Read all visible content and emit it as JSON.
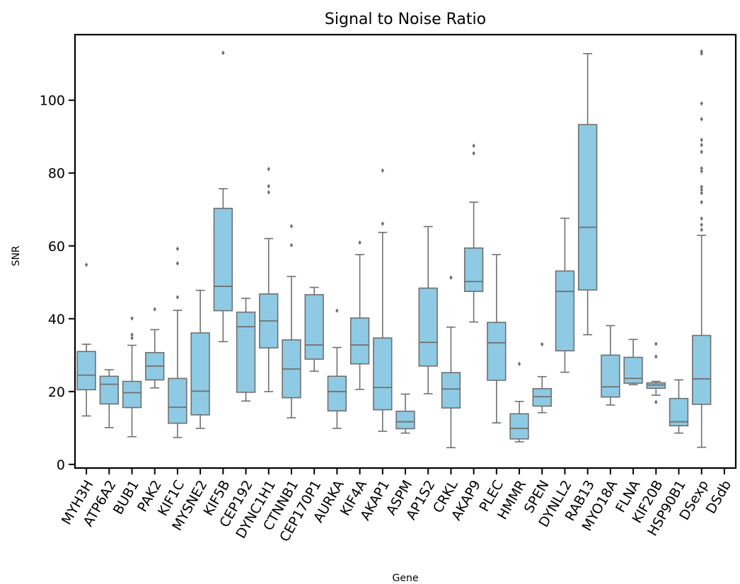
{
  "chart_data": {
    "type": "box",
    "title": "Signal to Noise Ratio",
    "xlabel": "Gene",
    "ylabel": "SNR",
    "ylim": [
      -1,
      118
    ],
    "yticks": [
      0,
      20,
      40,
      60,
      80,
      100
    ],
    "box_color": "#8ecae3",
    "line_color": "#707070",
    "grid": false,
    "categories": [
      "MYH3H",
      "ATP6A2",
      "BUB1",
      "PAK2",
      "KIF1C",
      "MYSNE2",
      "KIF5B",
      "CEP192",
      "DYNC1H1",
      "CTNNB1",
      "CEP170P1",
      "AURKA",
      "KIF4A",
      "AKAP1",
      "ASPM",
      "AP1S2",
      "CRKL",
      "AKAP9",
      "PLEC",
      "HMMR",
      "SPEN",
      "DYNLL2",
      "RAB13",
      "MYO18A",
      "FLNA",
      "KIF20B",
      "HSP90B1",
      "DSexp",
      "DSdb"
    ],
    "boxes": [
      {
        "whislo": 13.3,
        "q1": 20.5,
        "med": 24.5,
        "q3": 31.0,
        "whishi": 33.0,
        "fliers": [
          54.8
        ]
      },
      {
        "whislo": 10.1,
        "q1": 16.6,
        "med": 22.0,
        "q3": 24.2,
        "whishi": 26.0,
        "fliers": []
      },
      {
        "whislo": 7.6,
        "q1": 15.6,
        "med": 19.7,
        "q3": 22.8,
        "whishi": 32.7,
        "fliers": [
          34.7,
          35.6,
          40.1
        ]
      },
      {
        "whislo": 21.0,
        "q1": 23.2,
        "med": 27.0,
        "q3": 30.7,
        "whishi": 37.0,
        "fliers": [
          42.6
        ]
      },
      {
        "whislo": 7.4,
        "q1": 11.3,
        "med": 15.7,
        "q3": 23.6,
        "whishi": 42.3,
        "fliers": [
          45.9,
          55.2,
          59.2
        ]
      },
      {
        "whislo": 9.9,
        "q1": 13.6,
        "med": 20.1,
        "q3": 36.1,
        "whishi": 47.8,
        "fliers": []
      },
      {
        "whislo": 33.7,
        "q1": 42.2,
        "med": 48.9,
        "q3": 70.3,
        "whishi": 75.7,
        "fliers": [
          113.0
        ]
      },
      {
        "whislo": 17.4,
        "q1": 19.8,
        "med": 37.8,
        "q3": 41.8,
        "whishi": 45.6,
        "fliers": []
      },
      {
        "whislo": 20.0,
        "q1": 32.0,
        "med": 39.4,
        "q3": 46.8,
        "whishi": 62.0,
        "fliers": [
          74.7,
          76.4,
          81.1
        ]
      },
      {
        "whislo": 12.8,
        "q1": 18.3,
        "med": 26.2,
        "q3": 34.2,
        "whishi": 51.6,
        "fliers": [
          60.2,
          65.4
        ]
      },
      {
        "whislo": 25.6,
        "q1": 28.9,
        "med": 32.8,
        "q3": 46.6,
        "whishi": 48.6,
        "fliers": []
      },
      {
        "whislo": 9.9,
        "q1": 14.7,
        "med": 20.0,
        "q3": 24.2,
        "whishi": 32.1,
        "fliers": [
          42.2
        ]
      },
      {
        "whislo": 20.6,
        "q1": 27.6,
        "med": 32.8,
        "q3": 40.2,
        "whishi": 57.6,
        "fliers": [
          60.9
        ]
      },
      {
        "whislo": 9.1,
        "q1": 15.0,
        "med": 21.1,
        "q3": 34.7,
        "whishi": 63.7,
        "fliers": [
          66.1,
          80.7
        ]
      },
      {
        "whislo": 8.6,
        "q1": 9.8,
        "med": 11.7,
        "q3": 14.6,
        "whishi": 19.3,
        "fliers": []
      },
      {
        "whislo": 19.4,
        "q1": 27.0,
        "med": 33.5,
        "q3": 48.4,
        "whishi": 65.3,
        "fliers": []
      },
      {
        "whislo": 4.6,
        "q1": 15.5,
        "med": 20.7,
        "q3": 25.2,
        "whishi": 37.7,
        "fliers": [
          51.3
        ]
      },
      {
        "whislo": 39.1,
        "q1": 47.5,
        "med": 50.2,
        "q3": 59.4,
        "whishi": 72.0,
        "fliers": [
          85.4,
          87.5
        ]
      },
      {
        "whislo": 11.4,
        "q1": 23.1,
        "med": 33.4,
        "q3": 39.0,
        "whishi": 57.6,
        "fliers": []
      },
      {
        "whislo": 6.2,
        "q1": 7.0,
        "med": 9.9,
        "q3": 13.9,
        "whishi": 17.3,
        "fliers": [
          27.6
        ]
      },
      {
        "whislo": 14.2,
        "q1": 16.0,
        "med": 18.6,
        "q3": 20.8,
        "whishi": 24.1,
        "fliers": [
          33.0
        ]
      },
      {
        "whislo": 25.3,
        "q1": 31.2,
        "med": 47.5,
        "q3": 53.1,
        "whishi": 67.6,
        "fliers": []
      },
      {
        "whislo": 35.6,
        "q1": 47.9,
        "med": 65.1,
        "q3": 93.3,
        "whishi": 112.8,
        "fliers": []
      },
      {
        "whislo": 16.3,
        "q1": 18.5,
        "med": 21.3,
        "q3": 30.0,
        "whishi": 38.1,
        "fliers": []
      },
      {
        "whislo": 21.9,
        "q1": 22.3,
        "med": 23.6,
        "q3": 29.4,
        "whishi": 34.3,
        "fliers": []
      },
      {
        "whislo": 19.0,
        "q1": 20.9,
        "med": 21.8,
        "q3": 22.4,
        "whishi": 22.8,
        "fliers": [
          17.1,
          29.6,
          33.1
        ]
      },
      {
        "whislo": 8.6,
        "q1": 10.6,
        "med": 11.7,
        "q3": 18.1,
        "whishi": 23.2,
        "fliers": []
      },
      {
        "whislo": 4.7,
        "q1": 16.5,
        "med": 23.5,
        "q3": 35.4,
        "whishi": 62.9,
        "fliers": [
          64.4,
          65.8,
          67.5,
          72.0,
          74.5,
          75.4,
          76.2,
          80.5,
          81.3,
          85.8,
          87.7,
          89.1,
          94.8,
          99.1,
          112.8,
          113.4
        ]
      },
      null
    ]
  }
}
